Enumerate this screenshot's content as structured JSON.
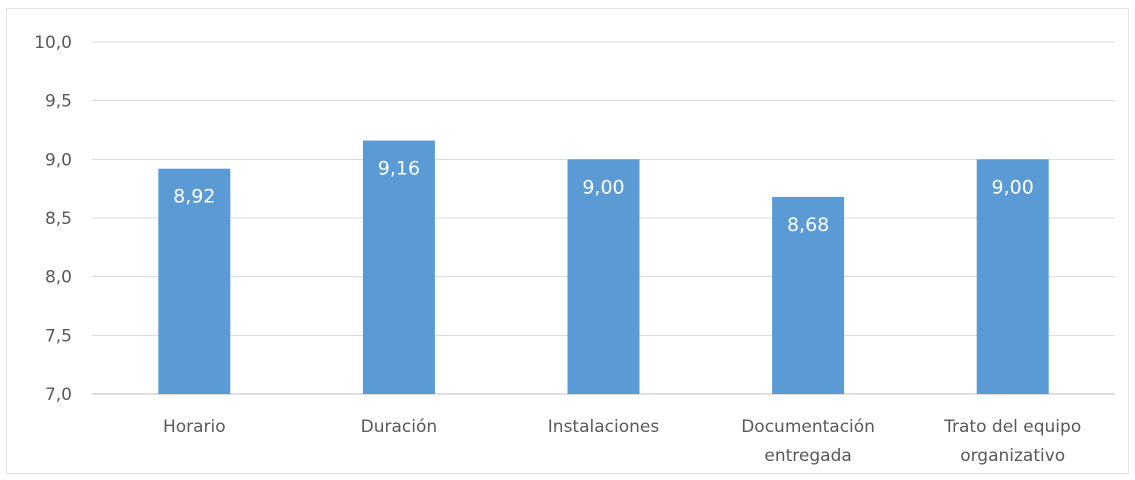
{
  "chart_data": {
    "type": "bar",
    "categories": [
      [
        "Horario"
      ],
      [
        "Duración"
      ],
      [
        "Instalaciones"
      ],
      [
        "Documentación",
        "entregada"
      ],
      [
        "Trato del equipo",
        "organizativo"
      ]
    ],
    "values": [
      8.92,
      9.16,
      9.0,
      8.68,
      9.0
    ],
    "value_labels": [
      "8,92",
      "9,16",
      "9,00",
      "8,68",
      "9,00"
    ],
    "ylim": [
      7.0,
      10.0
    ],
    "yticks": [
      7.0,
      7.5,
      8.0,
      8.5,
      9.0,
      9.5,
      10.0
    ],
    "ytick_labels": [
      "7,0",
      "7,5",
      "8,0",
      "8,5",
      "9,0",
      "9,5",
      "10,0"
    ],
    "grid": true,
    "legend": "none",
    "bar_color": "#5b9bd5",
    "grid_color": "#d9d9d9"
  }
}
